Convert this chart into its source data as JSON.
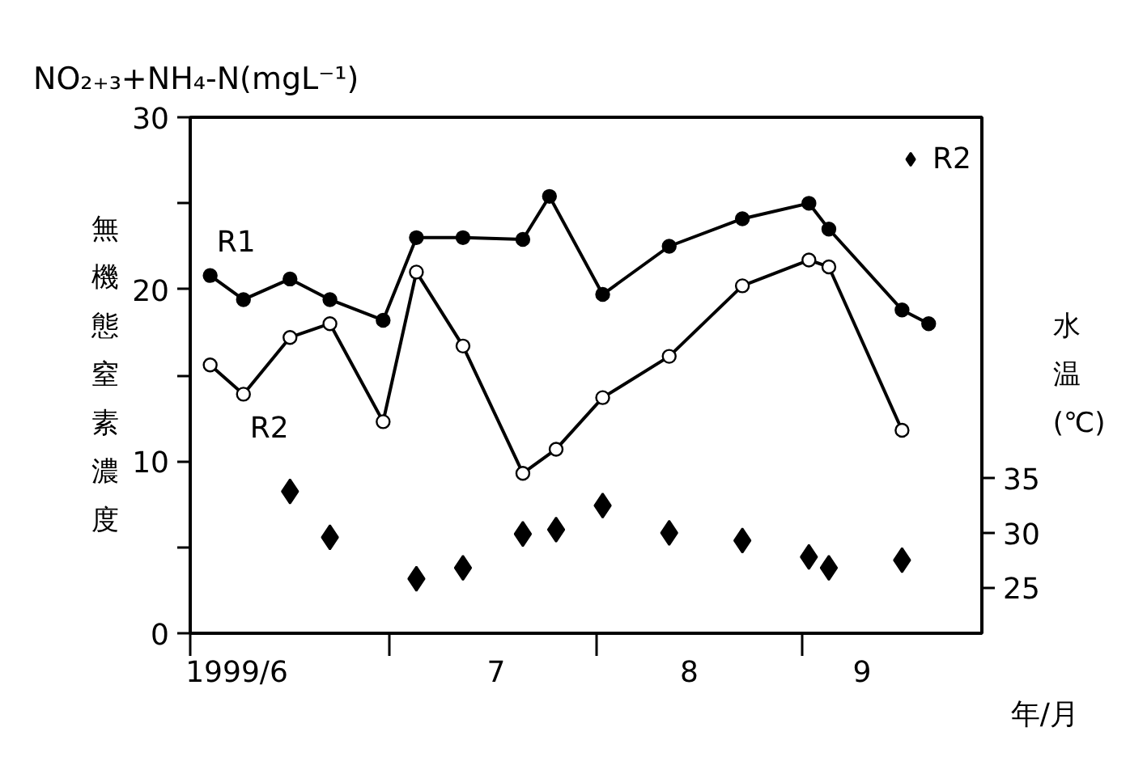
{
  "chart_data": {
    "type": "line",
    "title": "NO₂₊₃+NH₄-N(mgL⁻¹)",
    "ylabel": "無機態窒素濃度",
    "y2label": "水温(℃)",
    "xlabel": "年/月",
    "xlim": [
      "1999-06-01",
      "1999-09-28"
    ],
    "xticks": [
      {
        "value": "1999-06-01",
        "label": null
      },
      {
        "value": "1999-07-01",
        "label": null
      },
      {
        "value": "1999-08-01",
        "label": null
      },
      {
        "value": "1999-09-01",
        "label": null
      },
      {
        "value": "1999-06-08",
        "label": "1999/6"
      },
      {
        "value": "1999-07-17",
        "label": "7"
      },
      {
        "value": "1999-08-15",
        "label": "8"
      },
      {
        "value": "1999-09-10",
        "label": "9"
      }
    ],
    "ylim": [
      0,
      30
    ],
    "yticks": [
      0,
      {
        "value": 5,
        "label": null
      },
      10,
      {
        "value": 15,
        "label": null
      },
      20,
      {
        "value": 25,
        "label": null
      },
      30
    ],
    "y2lim": [
      20.8,
      68.1
    ],
    "y2ticks": [
      25,
      30,
      35
    ],
    "legend": "top right",
    "series": [
      {
        "name": "R1",
        "color": "#000000",
        "marker": "circle",
        "x": [
          "1999-06-04",
          "1999-06-09",
          "1999-06-16",
          "1999-06-22",
          "1999-06-30",
          "1999-07-05",
          "1999-07-12",
          "1999-07-21",
          "1999-07-25",
          "1999-08-02",
          "1999-08-12",
          "1999-08-23",
          "1999-09-02",
          "1999-09-05",
          "1999-09-16",
          "1999-09-20"
        ],
        "values": [
          20.8,
          19.4,
          20.6,
          19.4,
          18.2,
          23.0,
          23.0,
          22.9,
          25.4,
          19.7,
          22.5,
          24.1,
          25.0,
          23.5,
          18.8,
          18.0
        ]
      },
      {
        "name": "R2",
        "color": "#000000",
        "marker": "circle_open",
        "x": [
          "1999-06-04",
          "1999-06-09",
          "1999-06-16",
          "1999-06-22",
          "1999-06-30",
          "1999-07-05",
          "1999-07-12",
          "1999-07-21",
          "1999-07-26",
          "1999-08-02",
          "1999-08-12",
          "1999-08-23",
          "1999-09-02",
          "1999-09-05",
          "1999-09-16"
        ],
        "values": [
          15.6,
          13.9,
          17.2,
          18.0,
          12.3,
          21.0,
          16.7,
          9.3,
          10.7,
          13.7,
          16.1,
          20.2,
          21.7,
          21.3,
          11.8
        ]
      },
      {
        "name": "R2",
        "color": "#000000",
        "type": "scatter",
        "marker": "diamond",
        "axis": "y2",
        "x": [
          "1999-06-16",
          "1999-06-22",
          "1999-07-05",
          "1999-07-12",
          "1999-07-21",
          "1999-07-26",
          "1999-08-02",
          "1999-08-12",
          "1999-08-23",
          "1999-09-02",
          "1999-09-05",
          "1999-09-16"
        ],
        "values": [
          33.8,
          29.6,
          25.8,
          26.8,
          29.9,
          30.3,
          32.5,
          30.0,
          29.3,
          27.8,
          26.8,
          27.5
        ]
      }
    ]
  }
}
